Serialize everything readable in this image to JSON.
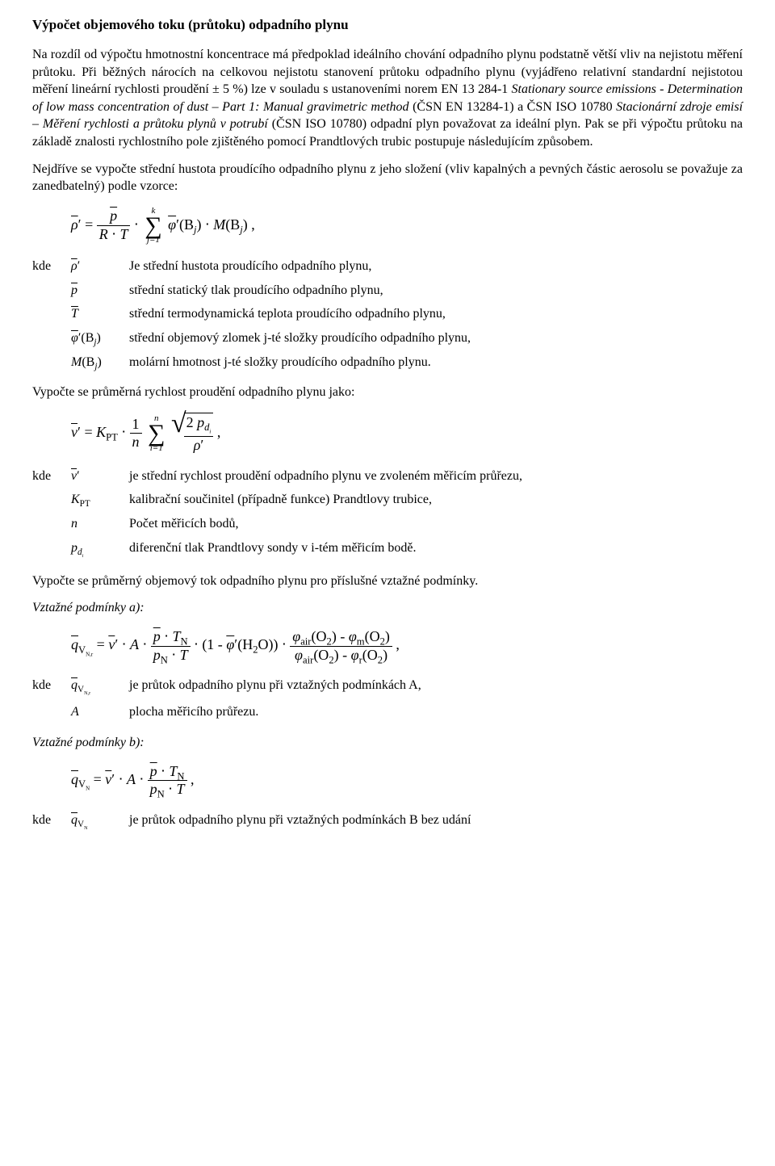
{
  "title": "Výpočet objemového toku (průtoku) odpadního plynu",
  "para1": "Na rozdíl od výpočtu hmotnostní koncentrace má předpoklad ideálního chování odpadního plynu podstatně větší vliv na nejistotu měření průtoku. Při běžných nárocích na celkovou nejistotu stanovení průtoku odpadního plynu (vyjádřeno relativní standardní nejistotou měření lineární rychlosti proudění ± 5 %) lze v souladu s ustanoveními norem EN 13 284-1 ",
  "para1_italic": "Stationary source emissions - Determination of low mass concentration of dust – Part 1: Manual gravimetric method",
  "para1b": " (ČSN EN 13284-1) a ČSN ISO 10780 ",
  "para1b_italic": "Stacionární zdroje emisí – Měření rychlosti a průtoku plynů v potrubí",
  "para1c": " (ČSN ISO 10780) odpadní plyn považovat za ideální plyn. Pak se při výpočtu průtoku na základě znalosti rychlostního pole zjištěného pomocí Prandtlových trubic postupuje následujícím způsobem.",
  "para2": "Nejdříve se vypočte střední hustota proudícího odpadního plynu z jeho složení (vliv kapalných a pevných částic aerosolu se považuje za zanedbatelný) podle vzorce:",
  "formula1": {
    "lhs_sym": "ρ",
    "eq": "=",
    "frac_num": "p",
    "frac_den_R": "R",
    "frac_den_T": "T",
    "dot": "⋅",
    "sum_top": "k",
    "sum_bot": "j=1",
    "phi": "φ",
    "B": "B",
    "j": "j",
    "M": "M",
    "comma": ","
  },
  "kde": "kde",
  "defs1": {
    "s1_sym": "ρ′",
    "s1_desc": "Je střední hustota proudícího odpadního plynu,",
    "s2_sym": "p",
    "s2_desc": "střední statický tlak proudícího odpadního plynu,",
    "s3_sym": "T",
    "s3_desc": "střední termodynamická teplota proudícího odpadního plynu,",
    "s4_sym": "φ′(Bⱼ)",
    "s4_desc": "střední objemový zlomek j-té složky proudícího odpadního plynu,",
    "s5_sym": "M(Bⱼ)",
    "s5_desc": "molární hmotnost j-té složky proudícího odpadního plynu."
  },
  "para3": "Vypočte se průměrná rychlost proudění odpadního plynu jako:",
  "formula2": {
    "v": "v",
    "eq": "=",
    "K": "K",
    "PT": "PT",
    "dot": "⋅",
    "one": "1",
    "n": "n",
    "sum_top": "n",
    "sum_bot": "i=1",
    "two": "2",
    "p": "p",
    "d": "d",
    "i": "i",
    "rho": "ρ",
    "comma": ","
  },
  "defs2": {
    "s1_sym": "v′",
    "s1_desc": "je střední rychlost proudění odpadního plynu ve zvoleném měřicím průřezu,",
    "s2_sym": "K_PT",
    "s2_desc": "kalibrační součinitel (případně funkce) Prandtlovy trubice,",
    "s3_sym": "n",
    "s3_desc": "Počet měřicích bodů,",
    "s4_sym": "p_dᵢ",
    "s4_desc": "diferenční tlak Prandtlovy sondy v i-tém měřicím bodě."
  },
  "para4": "Vypočte se průměrný objemový tok odpadního plynu pro příslušné vztažné podmínky.",
  "sub_a": "Vztažné podmínky a):",
  "formula3": {
    "q": "q",
    "V": "V",
    "Nr": "N,r",
    "eq": "=",
    "v": "v",
    "A": "A",
    "p": "p",
    "T": "T",
    "N": "N",
    "pN": "p",
    "one_minus": "(1 -",
    "phi": "φ",
    "H2O": "H₂O",
    "close": "))",
    "air": "air",
    "O2": "O₂",
    "m": "m",
    "r": "r",
    "dot": "⋅",
    "minus": "-",
    "comma": ","
  },
  "defs3": {
    "s1_desc": "je průtok odpadního plynu při vztažných podmínkách A,",
    "s2_sym": "A",
    "s2_desc": "plocha měřicího průřezu."
  },
  "sub_b": "Vztažné podmínky b):",
  "formula4": {
    "q": "q",
    "V": "V",
    "N": "N",
    "eq": "=",
    "v": "v",
    "A": "A",
    "p": "p",
    "T": "T",
    "pN": "p",
    "dot": "⋅",
    "comma": ","
  },
  "defs4": {
    "s1_desc": "je průtok odpadního plynu při vztažných podmínkách B bez udání"
  }
}
